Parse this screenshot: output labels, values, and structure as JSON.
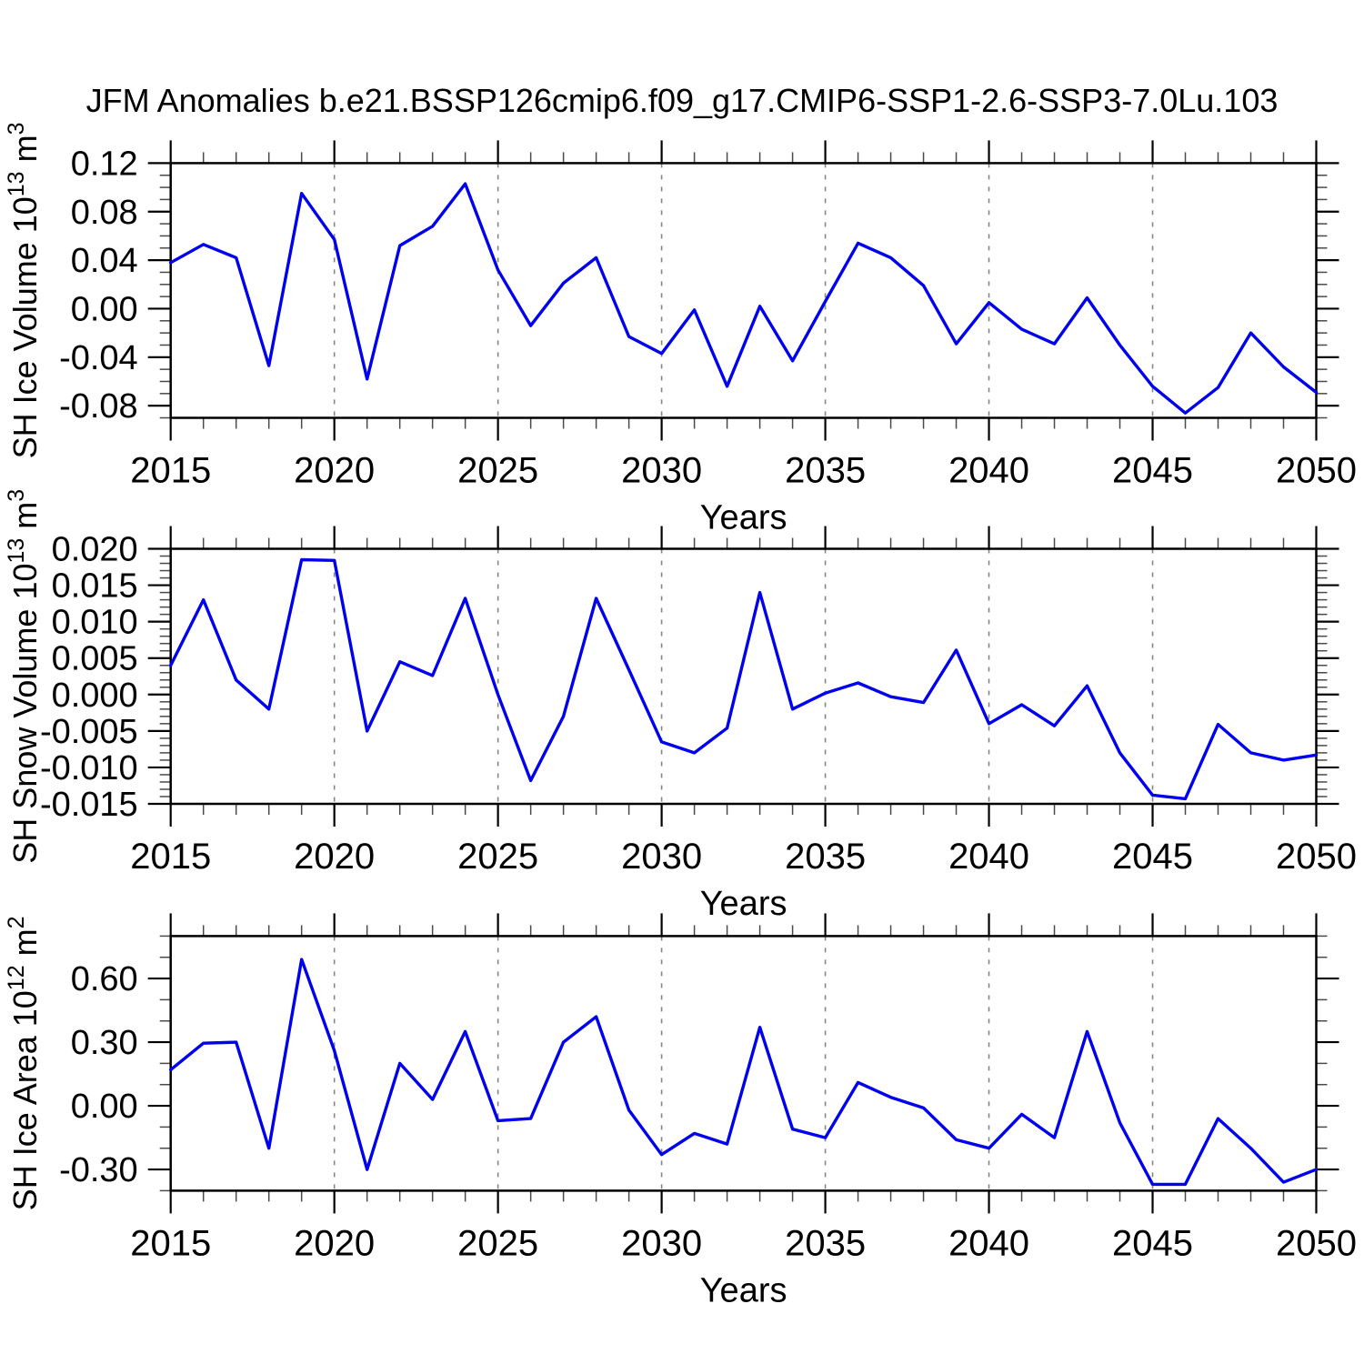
{
  "title": "JFM Anomalies b.e21.BSSP126cmip6.f09_g17.CMIP6-SSP1-2.6-SSP3-7.0Lu.103",
  "xlabel": "Years",
  "line_color": "#0000ee",
  "grid_color": "#868686",
  "years": [
    2015,
    2016,
    2017,
    2018,
    2019,
    2020,
    2021,
    2022,
    2023,
    2024,
    2025,
    2026,
    2027,
    2028,
    2029,
    2030,
    2031,
    2032,
    2033,
    2034,
    2035,
    2036,
    2037,
    2038,
    2039,
    2040,
    2041,
    2042,
    2043,
    2044,
    2045,
    2046,
    2047,
    2048,
    2049,
    2050
  ],
  "x_axis": {
    "min": 2015,
    "max": 2050,
    "major_step": 5,
    "minor_step": 1,
    "tick_labels": [
      "2015",
      "2020",
      "2025",
      "2030",
      "2035",
      "2040",
      "2045",
      "2050"
    ],
    "grid_years": [
      2020,
      2025,
      2030,
      2035,
      2040,
      2045
    ]
  },
  "chart_data": [
    {
      "type": "line",
      "id": "sh-ice-volume",
      "ylabel_parts": [
        {
          "t": "SH Ice Volume 10"
        },
        {
          "t": "13",
          "sup": true
        },
        {
          "t": " m"
        },
        {
          "t": "3",
          "sup": true
        }
      ],
      "ylabel_text": "SH Ice Volume 10^13 m^3",
      "ylim": [
        -0.09,
        0.12
      ],
      "yticks": [
        0.12,
        0.08,
        0.04,
        0.0,
        -0.04,
        -0.08
      ],
      "ytick_labels": [
        "0.12",
        "0.08",
        "0.04",
        "0.00",
        "-0.04",
        "-0.08"
      ],
      "minor_step": 0.01,
      "values": [
        0.038,
        0.053,
        0.042,
        -0.047,
        0.095,
        0.057,
        -0.058,
        0.052,
        0.068,
        0.103,
        0.032,
        -0.014,
        0.021,
        0.042,
        -0.023,
        -0.037,
        -0.001,
        -0.064,
        0.002,
        -0.043,
        0.006,
        0.054,
        0.042,
        0.019,
        -0.029,
        0.005,
        -0.017,
        -0.029,
        0.009,
        -0.03,
        -0.064,
        -0.086,
        -0.065,
        -0.02,
        -0.048,
        -0.069
      ]
    },
    {
      "type": "line",
      "id": "sh-snow-volume",
      "ylabel_parts": [
        {
          "t": "SH Snow Volume 10"
        },
        {
          "t": "13",
          "sup": true
        },
        {
          "t": " m"
        },
        {
          "t": "3",
          "sup": true
        }
      ],
      "ylabel_text": "SH Snow Volume 10^13 m^3",
      "ylim": [
        -0.015,
        0.02
      ],
      "yticks": [
        0.02,
        0.015,
        0.01,
        0.005,
        0.0,
        -0.005,
        -0.01,
        -0.015
      ],
      "ytick_labels": [
        "0.020",
        "0.015",
        "0.010",
        "0.005",
        "0.000",
        "-0.005",
        "-0.010",
        "-0.015"
      ],
      "minor_step": 0.001,
      "values": [
        0.004,
        0.013,
        0.002,
        -0.002,
        0.0185,
        0.0184,
        -0.005,
        0.0045,
        0.0026,
        0.0132,
        0.0,
        -0.0118,
        -0.003,
        0.0132,
        0.0034,
        -0.0065,
        -0.008,
        -0.0046,
        0.014,
        -0.002,
        0.0002,
        0.0016,
        -0.0003,
        -0.0011,
        0.0061,
        -0.004,
        -0.0014,
        -0.0043,
        0.0012,
        -0.008,
        -0.0138,
        -0.0143,
        -0.0041,
        -0.008,
        -0.009,
        -0.0083
      ]
    },
    {
      "type": "line",
      "id": "sh-ice-area",
      "ylabel_parts": [
        {
          "t": "SH Ice Area 10"
        },
        {
          "t": "12",
          "sup": true
        },
        {
          "t": " m"
        },
        {
          "t": "2",
          "sup": true
        }
      ],
      "ylabel_text": "SH Ice Area 10^12 m^2",
      "ylim": [
        -0.4,
        0.8
      ],
      "yticks": [
        0.6,
        0.3,
        0.0,
        -0.3
      ],
      "ytick_labels": [
        "0.60",
        "0.30",
        "0.00",
        "-0.30"
      ],
      "minor_step": 0.1,
      "values": [
        0.17,
        0.295,
        0.3,
        -0.2,
        0.69,
        0.26,
        -0.3,
        0.2,
        0.03,
        0.35,
        -0.07,
        -0.06,
        0.3,
        0.42,
        -0.02,
        -0.23,
        -0.13,
        -0.18,
        0.37,
        -0.11,
        -0.15,
        0.11,
        0.04,
        -0.01,
        -0.16,
        -0.2,
        -0.04,
        -0.15,
        0.35,
        -0.08,
        -0.37,
        -0.37,
        -0.06,
        -0.2,
        -0.36,
        -0.3
      ]
    }
  ]
}
